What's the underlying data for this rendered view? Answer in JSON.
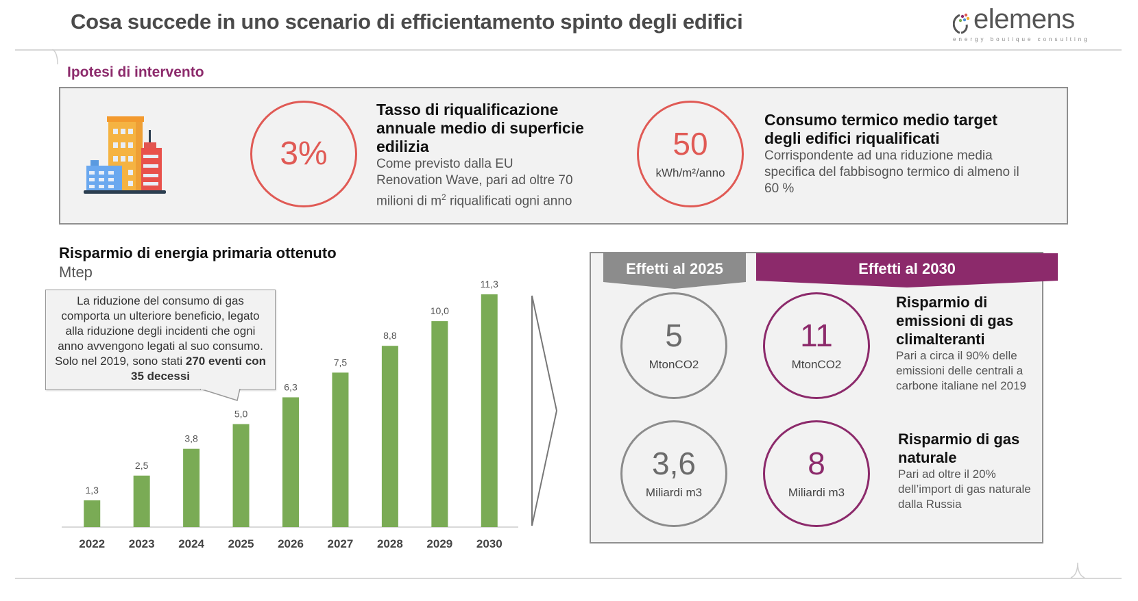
{
  "header": {
    "title": "Cosa succede in uno scenario di efficientamento spinto degli edifici",
    "logo_word": "elemens",
    "logo_tagline": "energy boutique consulting"
  },
  "hypotheses": {
    "section_label": "Ipotesi di intervento",
    "icon": "buildings-icon",
    "items": [
      {
        "value": "3%",
        "unit": "",
        "title": "Tasso di riqualificazione annuale medio di superficie edilizia",
        "desc_line1": "Come previsto dalla EU",
        "desc_line2": "Renovation Wave, pari ad oltre 70",
        "desc_line3a": "milioni di m",
        "desc_sup": "2",
        "desc_line3b": " riqualificati ogni anno"
      },
      {
        "value": "50",
        "unit": "kWh/m²/anno",
        "title": "Consumo termico medio target degli edifici riqualificati",
        "desc": "Corrispondente ad una riduzione media specifica del fabbisogno termico di almeno il 60 %"
      }
    ],
    "accent_color": "#e05a55"
  },
  "chart_data": {
    "type": "bar",
    "title": "Risparmio di energia primaria ottenuto",
    "ylabel": "Mtep",
    "xlabel": "",
    "categories": [
      "2022",
      "2023",
      "2024",
      "2025",
      "2026",
      "2027",
      "2028",
      "2029",
      "2030"
    ],
    "values": [
      1.3,
      2.5,
      3.8,
      5.0,
      6.3,
      7.5,
      8.8,
      10.0,
      11.3
    ],
    "value_labels": [
      "1,3",
      "2,5",
      "3,8",
      "5,0",
      "6,3",
      "7,5",
      "8,8",
      "10,0",
      "11,3"
    ],
    "ylim": [
      0,
      11.3
    ],
    "grid": false,
    "bar_color": "#7aab55",
    "annotation": {
      "text_plain": "La riduzione del consumo di gas comporta un ulteriore beneficio, legato alla riduzione degli incidenti che ogni anno avvengono legati al suo consumo. Solo nel 2019, sono stati ",
      "text_bold": "270 eventi con 35 decessi"
    }
  },
  "effects": {
    "tab_2025": "Effetti al 2025",
    "tab_2030": "Effetti al 2030",
    "tab_2025_color": "#8c8c8c",
    "tab_2030_color": "#8c2a6b",
    "rows": [
      {
        "value_2025": "5",
        "unit_2025": "MtonCO2",
        "value_2030": "11",
        "unit_2030": "MtonCO2",
        "title": "Risparmio di emissioni di gas climalteranti",
        "desc": "Pari a circa il 90% delle emissioni delle centrali a carbone italiane nel 2019"
      },
      {
        "value_2025": "3,6",
        "unit_2025": "Miliardi m3",
        "value_2030": "8",
        "unit_2030": "Miliardi m3",
        "title": "Risparmio di gas naturale",
        "desc": "Pari ad oltre il 20% dell’import di gas naturale dalla Russia"
      }
    ]
  }
}
